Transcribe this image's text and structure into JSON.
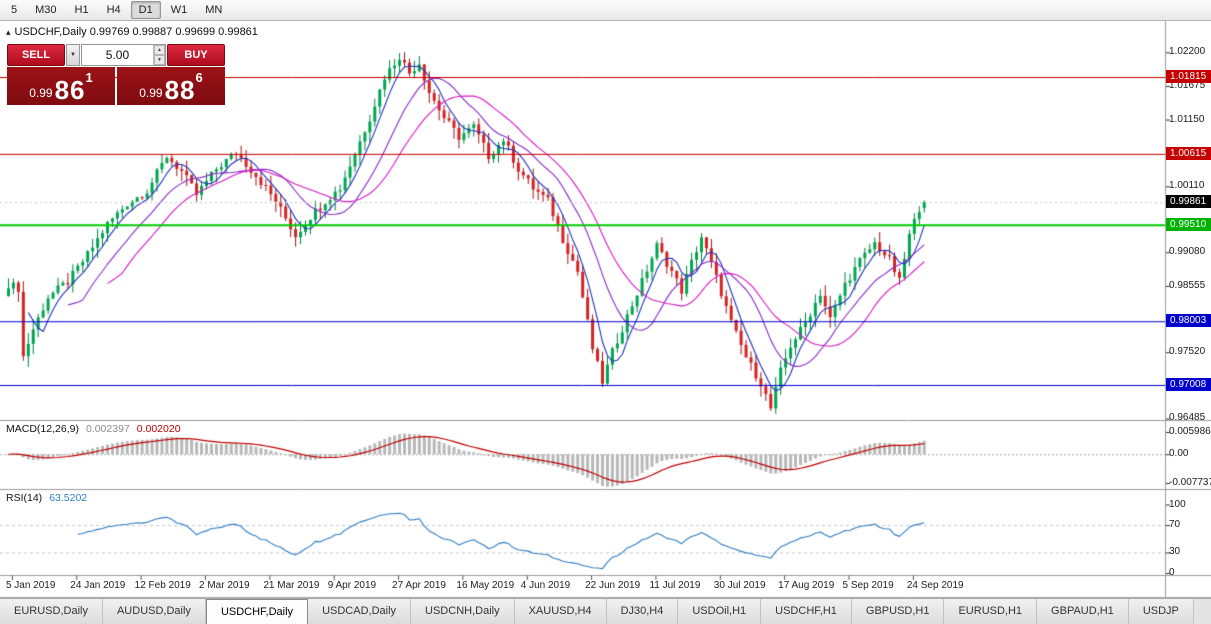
{
  "toolbar": {
    "timeframes": [
      {
        "label": "5",
        "active": false
      },
      {
        "label": "M30",
        "active": false
      },
      {
        "label": "H1",
        "active": false
      },
      {
        "label": "H4",
        "active": false
      },
      {
        "label": "D1",
        "active": true
      },
      {
        "label": "W1",
        "active": false
      },
      {
        "label": "MN",
        "active": false
      }
    ]
  },
  "icons": {
    "panel_toggle": "▴",
    "caret_down": "▼",
    "spin_up": "▲",
    "spin_down": "▼"
  },
  "chart_header": {
    "title": "USDCHF,Daily  0.99769 0.99887 0.99699 0.99861"
  },
  "trade_panel": {
    "sell_label": "SELL",
    "buy_label": "BUY",
    "volume": "5.00",
    "sell_price": {
      "prefix": "0.99",
      "main": "86",
      "sup": "1"
    },
    "buy_price": {
      "prefix": "0.99",
      "main": "88",
      "sup": "6"
    }
  },
  "chart_data": {
    "type": "candlestick",
    "symbol": "USDCHF",
    "period": "Daily",
    "ohlc": {
      "open": 0.99769,
      "high": 0.99887,
      "low": 0.99699,
      "close": 0.99861
    },
    "bars_total": 186,
    "price_path_anchors": [
      [
        0,
        0.9858
      ],
      [
        2,
        0.9852
      ],
      [
        3,
        0.9745
      ],
      [
        5,
        0.9788
      ],
      [
        8,
        0.9838
      ],
      [
        12,
        0.9862
      ],
      [
        16,
        0.9904
      ],
      [
        20,
        0.9952
      ],
      [
        24,
        0.9984
      ],
      [
        28,
        1.0004
      ],
      [
        32,
        1.0058
      ],
      [
        35,
        1.0034
      ],
      [
        38,
        0.9998
      ],
      [
        42,
        1.0038
      ],
      [
        46,
        1.0064
      ],
      [
        50,
        1.0028
      ],
      [
        54,
        0.9988
      ],
      [
        58,
        0.9934
      ],
      [
        61,
        0.9964
      ],
      [
        64,
        0.9988
      ],
      [
        67,
        1.0008
      ],
      [
        70,
        1.0062
      ],
      [
        73,
        1.0118
      ],
      [
        76,
        1.0182
      ],
      [
        79,
        1.0214
      ],
      [
        81,
        1.0188
      ],
      [
        83,
        1.0204
      ],
      [
        85,
        1.0158
      ],
      [
        88,
        1.0118
      ],
      [
        91,
        1.0088
      ],
      [
        94,
        1.0104
      ],
      [
        97,
        1.0058
      ],
      [
        100,
        1.0084
      ],
      [
        103,
        1.0038
      ],
      [
        106,
        1.0008
      ],
      [
        109,
        0.9988
      ],
      [
        112,
        0.9928
      ],
      [
        115,
        0.9878
      ],
      [
        118,
        0.9758
      ],
      [
        120,
        0.9706
      ],
      [
        122,
        0.9752
      ],
      [
        125,
        0.9808
      ],
      [
        128,
        0.9862
      ],
      [
        131,
        0.9918
      ],
      [
        134,
        0.9878
      ],
      [
        136,
        0.9848
      ],
      [
        138,
        0.9892
      ],
      [
        140,
        0.9932
      ],
      [
        143,
        0.9868
      ],
      [
        146,
        0.9798
      ],
      [
        149,
        0.9744
      ],
      [
        152,
        0.9704
      ],
      [
        154,
        0.9664
      ],
      [
        156,
        0.9722
      ],
      [
        158,
        0.9762
      ],
      [
        161,
        0.9798
      ],
      [
        164,
        0.9844
      ],
      [
        166,
        0.9804
      ],
      [
        169,
        0.9858
      ],
      [
        172,
        0.9894
      ],
      [
        175,
        0.9922
      ],
      [
        178,
        0.9896
      ],
      [
        180,
        0.9862
      ],
      [
        182,
        0.9934
      ],
      [
        184,
        0.9977
      ],
      [
        185,
        0.99861
      ]
    ],
    "x_labels": [
      "5 Jan 2019",
      "24 Jan 2019",
      "12 Feb 2019",
      "2 Mar 2019",
      "21 Mar 2019",
      "9 Apr 2019",
      "27 Apr 2019",
      "16 May 2019",
      "4 Jun 2019",
      "22 Jun 2019",
      "11 Jul 2019",
      "30 Jul 2019",
      "17 Aug 2019",
      "5 Sep 2019",
      "24 Sep 2019"
    ],
    "y_ticks": [
      {
        "label": "1.02200",
        "price": 1.022
      },
      {
        "label": "1.01675",
        "price": 1.01675
      },
      {
        "label": "1.01150",
        "price": 1.0115
      },
      {
        "label": "1.00110",
        "price": 1.0011
      },
      {
        "label": "0.99080",
        "price": 0.9908
      },
      {
        "label": "0.98555",
        "price": 0.98555
      },
      {
        "label": "0.97520",
        "price": 0.9752
      },
      {
        "label": "0.96485",
        "price": 0.96485
      }
    ],
    "y_markers": [
      {
        "label": "1.01815",
        "price": 1.01815,
        "bg": "#c40000"
      },
      {
        "label": "1.00615",
        "price": 1.00615,
        "bg": "#c40000"
      },
      {
        "label": "0.99861",
        "price": 0.99861,
        "bg": "#000000"
      },
      {
        "label": "0.99510",
        "price": 0.9951,
        "bg": "#00b300"
      },
      {
        "label": "0.98003",
        "price": 0.98003,
        "bg": "#0000cd"
      },
      {
        "label": "0.97008",
        "price": 0.97008,
        "bg": "#0000cd"
      }
    ],
    "h_lines": [
      {
        "price": 1.01815,
        "color": "#c40000",
        "width": 1
      },
      {
        "price": 1.00615,
        "color": "#c40000",
        "width": 1
      },
      {
        "price": 0.9951,
        "color": "#00cc00",
        "width": 2
      },
      {
        "price": 0.98003,
        "color": "#0000cd",
        "width": 1
      },
      {
        "price": 0.97008,
        "color": "#0000cd",
        "width": 1
      }
    ],
    "bid_line": {
      "price": 0.99861,
      "color": "#c9c9c9"
    },
    "candle_colors": {
      "bull": "#00a651",
      "bear": "#d42323",
      "wick_bull": "#00834021",
      "wick_bull2": "#008340",
      "wick_bear": "#a31414"
    },
    "ma_lines": [
      {
        "period": 5,
        "color": "#2236c0"
      },
      {
        "period": 13,
        "color": "#8a2bc9"
      },
      {
        "period": 21,
        "color": "#d81bc8"
      }
    ],
    "indicators": [
      {
        "label": "MACD(12,26,9)",
        "values": [
          "0.002397",
          "0.002020"
        ],
        "axis_labels": [
          {
            "label": "0.005986",
            "value": 0.005986
          },
          {
            "label": "0.00",
            "value": 0
          },
          {
            "label": "-0.007737",
            "value": -0.007737
          }
        ],
        "histogram_color": "#b8b8b8",
        "signal_color": "#c00000"
      },
      {
        "label": "RSI(14)",
        "values": [
          "63.5202"
        ],
        "axis_labels": [
          {
            "label": "100",
            "value": 100
          },
          {
            "label": "70",
            "value": 70
          },
          {
            "label": "30",
            "value": 30
          },
          {
            "label": "0",
            "value": 0
          }
        ],
        "line_color": "#2f7ec7",
        "levels": [
          70,
          30
        ]
      }
    ]
  },
  "tabs": [
    {
      "label": "EURUSD,Daily",
      "active": false
    },
    {
      "label": "AUDUSD,Daily",
      "active": false
    },
    {
      "label": "USDCHF,Daily",
      "active": true
    },
    {
      "label": "USDCAD,Daily",
      "active": false
    },
    {
      "label": "USDCNH,Daily",
      "active": false
    },
    {
      "label": "XAUUSD,H4",
      "active": false
    },
    {
      "label": "DJ30,H4",
      "active": false
    },
    {
      "label": "USDOil,H1",
      "active": false
    },
    {
      "label": "USDCHF,H1",
      "active": false
    },
    {
      "label": "GBPUSD,H1",
      "active": false
    },
    {
      "label": "EURUSD,H1",
      "active": false
    },
    {
      "label": "GBPAUD,H1",
      "active": false
    },
    {
      "label": "USDJP",
      "active": false
    }
  ]
}
